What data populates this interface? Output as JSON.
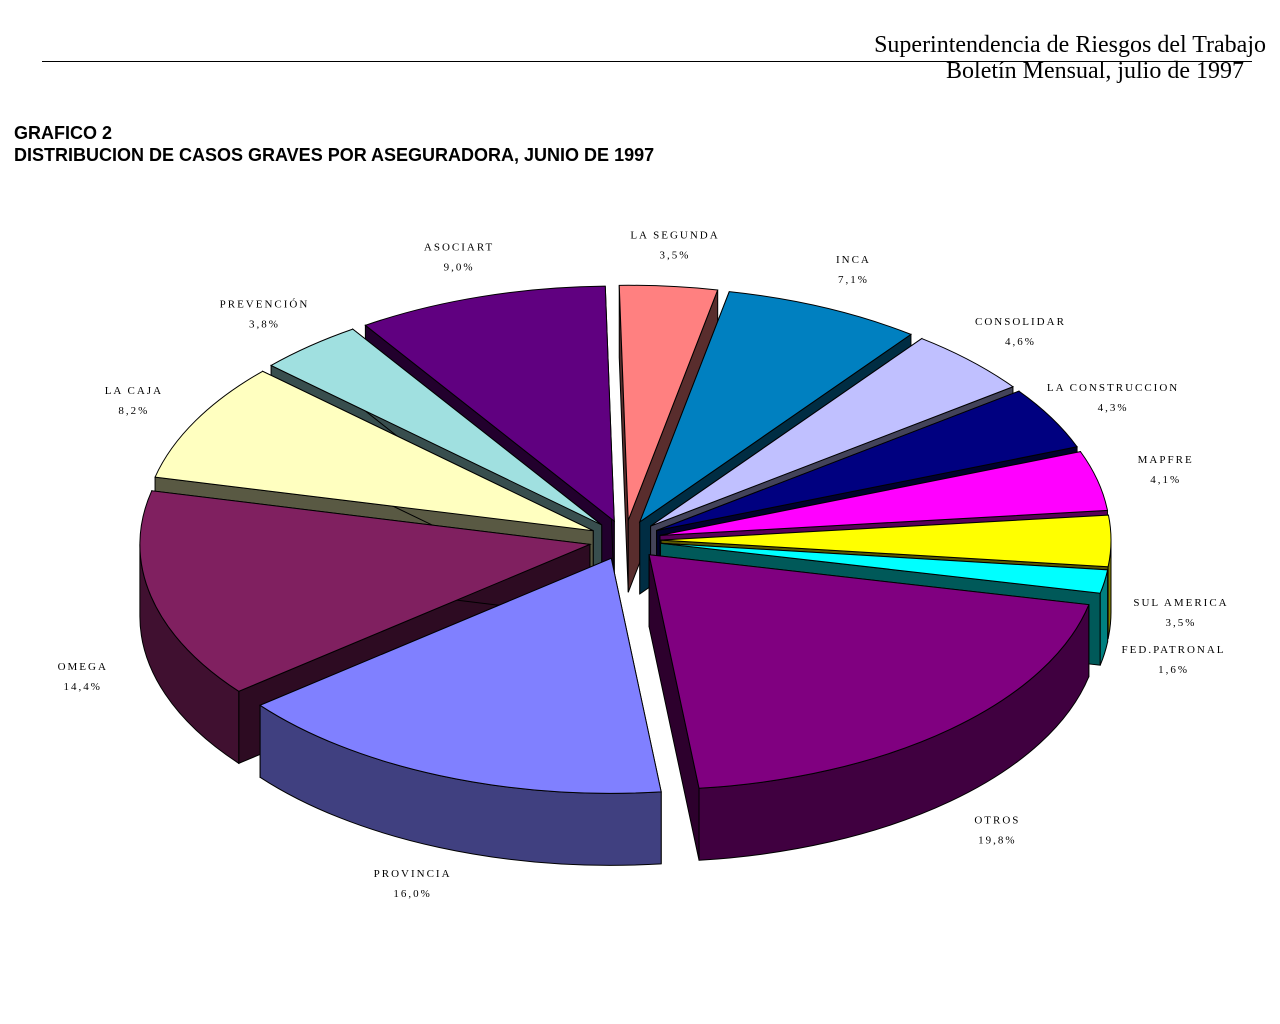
{
  "header": {
    "organization": "Superintendencia de Riesgos del Trabajo",
    "bulletin": "Boletín Mensual, julio de 1997"
  },
  "figure": {
    "number": "GRAFICO 2",
    "title": "DISTRIBUCION DE CASOS GRAVES POR ASEGURADORA, JUNIO DE 1997"
  },
  "chart_data": {
    "type": "pie",
    "style": "3d-exploded",
    "title": "DISTRIBUCION DE CASOS GRAVES POR ASEGURADORA, JUNIO DE 1997",
    "unit": "%",
    "slices": [
      {
        "label": "LA SEGUNDA",
        "value": 3.5,
        "display": "3,5%",
        "color": "#ff8080"
      },
      {
        "label": "INCA",
        "value": 7.1,
        "display": "7,1%",
        "color": "#0080c0"
      },
      {
        "label": "CONSOLIDAR",
        "value": 4.6,
        "display": "4,6%",
        "color": "#c0c0ff"
      },
      {
        "label": "LA CONSTRUCCION",
        "value": 4.3,
        "display": "4,3%",
        "color": "#000080"
      },
      {
        "label": "MAPFRE",
        "value": 4.1,
        "display": "4,1%",
        "color": "#ff00ff"
      },
      {
        "label": "SUL AMERICA",
        "value": 3.5,
        "display": "3,5%",
        "color": "#ffff00"
      },
      {
        "label": "FED.PATRONAL",
        "value": 1.6,
        "display": "1,6%",
        "color": "#00ffff"
      },
      {
        "label": "OTROS",
        "value": 19.8,
        "display": "19,8%",
        "color": "#800080"
      },
      {
        "label": "PROVINCIA",
        "value": 16.0,
        "display": "16,0%",
        "color": "#8080ff"
      },
      {
        "label": "OMEGA",
        "value": 14.4,
        "display": "14,4%",
        "color": "#802060"
      },
      {
        "label": "LA CAJA",
        "value": 8.2,
        "display": "8,2%",
        "color": "#ffffc0"
      },
      {
        "label": "PREVENCIÓN",
        "value": 3.8,
        "display": "3,8%",
        "color": "#a0e0e0"
      },
      {
        "label": "ASOCIART",
        "value": 9.0,
        "display": "9,0%",
        "color": "#600080"
      }
    ]
  }
}
